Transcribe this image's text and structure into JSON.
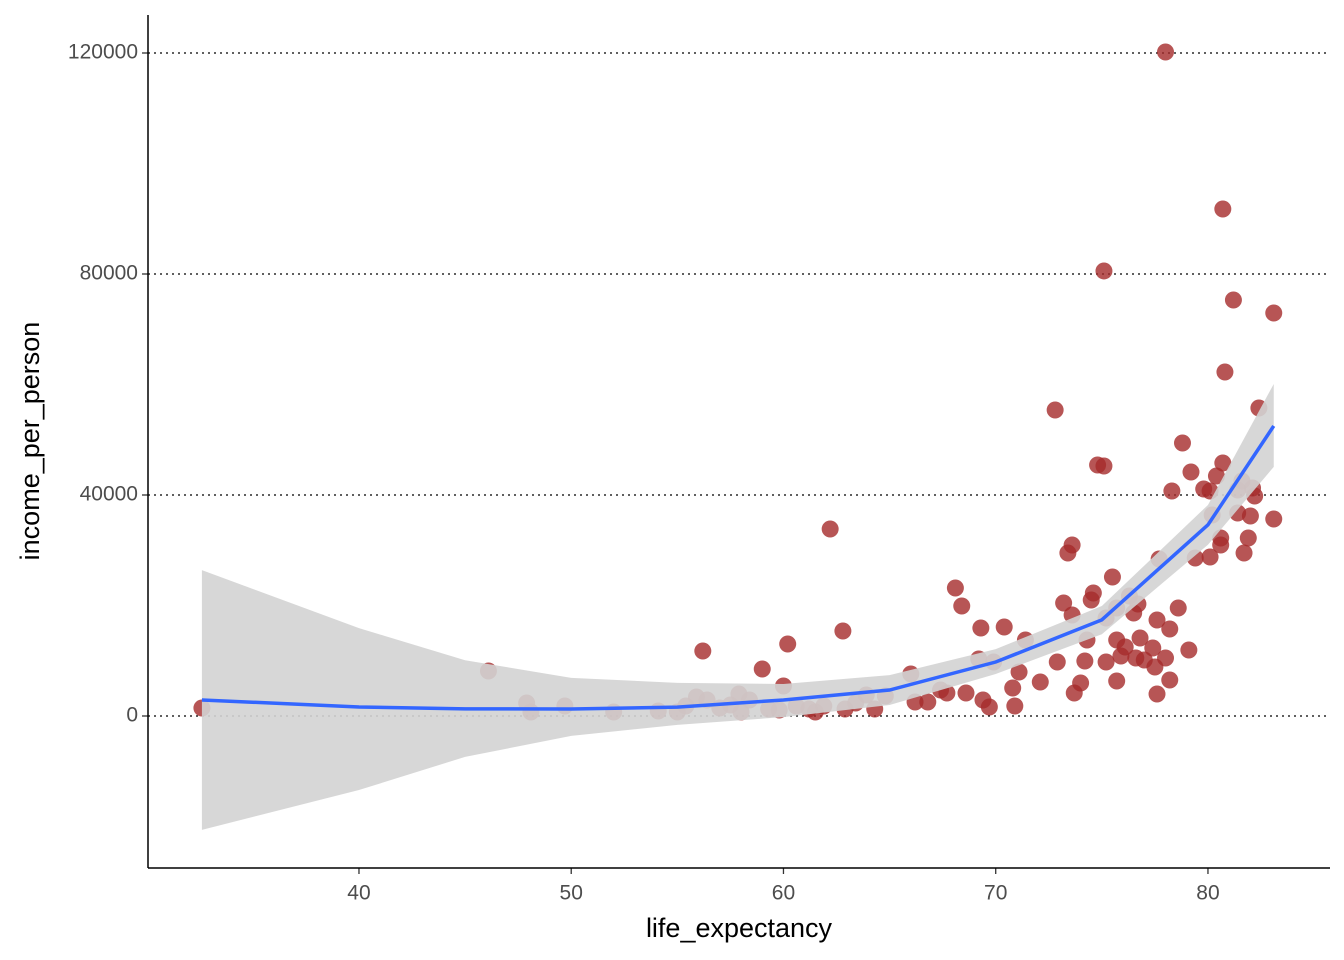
{
  "chart_data": {
    "type": "scatter",
    "x_label": "life_expectancy",
    "y_label": "income_per_person",
    "xlim": [
      30.06,
      85.75
    ],
    "ylim": [
      -27511,
      126877
    ],
    "xticks": [
      40,
      50,
      60,
      70,
      80
    ],
    "yticks": [
      0,
      40000,
      80000,
      120000
    ],
    "grid": "y",
    "point_color": "#a52a2a",
    "x": [
      32.6,
      46.1,
      47.9,
      48.1,
      49.7,
      52.0,
      54.1,
      55.0,
      55.4,
      55.9,
      56.2,
      56.4,
      57.0,
      57.5,
      57.9,
      58.0,
      58.4,
      59.0,
      59.3,
      59.8,
      60.0,
      60.2,
      60.6,
      61.2,
      61.5,
      61.9,
      62.2,
      62.8,
      62.9,
      63.4,
      63.9,
      64.3,
      64.8,
      66.0,
      66.2,
      66.8,
      67.4,
      67.7,
      68.1,
      68.4,
      68.6,
      69.2,
      69.3,
      69.4,
      69.7,
      69.9,
      70.4,
      70.8,
      70.9,
      71.1,
      71.4,
      72.1,
      72.8,
      72.9,
      73.2,
      73.4,
      73.6,
      73.6,
      73.7,
      74.0,
      74.2,
      74.3,
      74.5,
      74.6,
      74.8,
      75.1,
      75.1,
      75.2,
      75.2,
      75.5,
      75.7,
      75.7,
      75.7,
      75.9,
      76.1,
      76.3,
      76.5,
      76.6,
      76.7,
      76.8,
      77.0,
      77.4,
      77.5,
      77.6,
      77.6,
      77.7,
      78.0,
      78.0,
      78.2,
      78.3,
      78.2,
      78.6,
      78.8,
      79.1,
      79.2,
      79.4,
      79.8,
      80.1,
      80.1,
      80.2,
      80.4,
      80.6,
      80.6,
      80.7,
      80.7,
      80.8,
      81.2,
      81.4,
      81.4,
      81.6,
      81.7,
      81.9,
      82.0,
      82.1,
      82.2,
      82.4,
      83.1,
      83.1
    ],
    "values": [
      1450,
      8150,
      2350,
      720,
      1810,
      720,
      900,
      720,
      1810,
      3440,
      11770,
      2900,
      1450,
      1990,
      3980,
      720,
      2900,
      8510,
      1270,
      1090,
      5430,
      13030,
      1810,
      1270,
      720,
      1810,
      33850,
      15390,
      1270,
      2350,
      3800,
      1270,
      3620,
      7600,
      2530,
      2530,
      4710,
      4160,
      23170,
      19910,
      4160,
      10320,
      15930,
      2900,
      1630,
      9770,
      16110,
      5070,
      1810,
      7960,
      13760,
      6150,
      55390,
      9770,
      20450,
      29500,
      30950,
      18280,
      4160,
      5970,
      9960,
      13760,
      21000,
      22260,
      45430,
      45250,
      80550,
      17740,
      9770,
      25160,
      6340,
      13760,
      19550,
      10860,
      12490,
      21720,
      18640,
      10500,
      20270,
      14120,
      10140,
      12310,
      8870,
      3980,
      17380,
      28420,
      120180,
      10500,
      15750,
      40730,
      6520,
      19550,
      49410,
      11950,
      44160,
      28600,
      41090,
      40730,
      28780,
      36380,
      43440,
      32220,
      30950,
      91770,
      45790,
      62260,
      75300,
      40910,
      36740,
      42540,
      29500,
      32220,
      36200,
      41270,
      39820,
      55750,
      72940,
      35660
    ],
    "smooth": {
      "color": "#3366ff",
      "band_color": "#d3d3d3",
      "x": [
        32.6,
        40,
        45,
        50,
        55,
        60,
        65,
        70,
        75,
        80,
        83.1
      ],
      "y": [
        2900,
        1630,
        1300,
        1270,
        1600,
        2900,
        4700,
        9770,
        17400,
        34600,
        52500
      ],
      "lower": [
        -20600,
        -13400,
        -7400,
        -3600,
        -1600,
        -200,
        2000,
        7600,
        14800,
        31000,
        45100
      ],
      "upper": [
        26400,
        15900,
        10100,
        6900,
        6000,
        5800,
        7400,
        12100,
        19900,
        38200,
        60100
      ]
    }
  }
}
